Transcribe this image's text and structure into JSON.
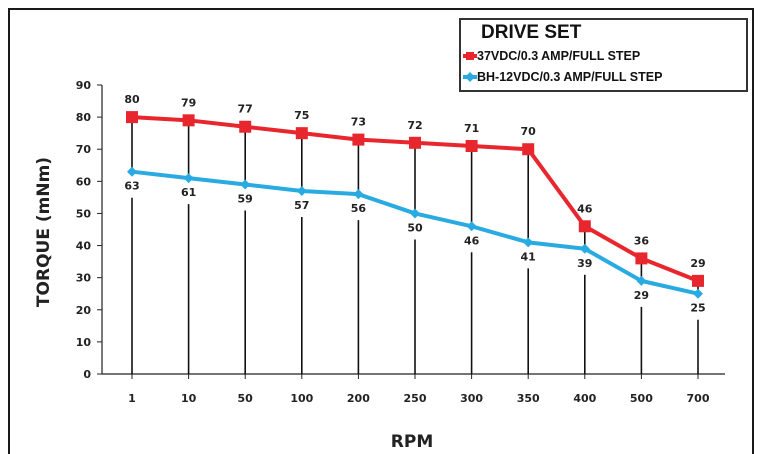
{
  "chart_data": {
    "type": "line",
    "legend_title": "DRIVE SET",
    "xlabel": "RPM",
    "ylabel": "TORQUE (mNm)",
    "categories": [
      "1",
      "10",
      "50",
      "100",
      "200",
      "250",
      "300",
      "350",
      "400",
      "500",
      "700"
    ],
    "ylim": [
      0,
      90
    ],
    "yticks": [
      "0",
      "10",
      "20",
      "30",
      "40",
      "50",
      "60",
      "70",
      "80",
      "90"
    ],
    "grid": false,
    "legend_position": "top-right",
    "series": [
      {
        "name": "37VDC/0.3 AMP/FULL STEP",
        "color": "#e8262d",
        "marker": "square",
        "values": [
          80,
          79,
          77,
          75,
          73,
          72,
          71,
          70,
          46,
          36,
          29
        ]
      },
      {
        "name": "BH-12VDC/0.3 AMP/FULL STEP",
        "color": "#29abe2",
        "marker": "diamond",
        "values": [
          63,
          61,
          59,
          57,
          56,
          50,
          46,
          41,
          39,
          29,
          25
        ]
      }
    ]
  }
}
